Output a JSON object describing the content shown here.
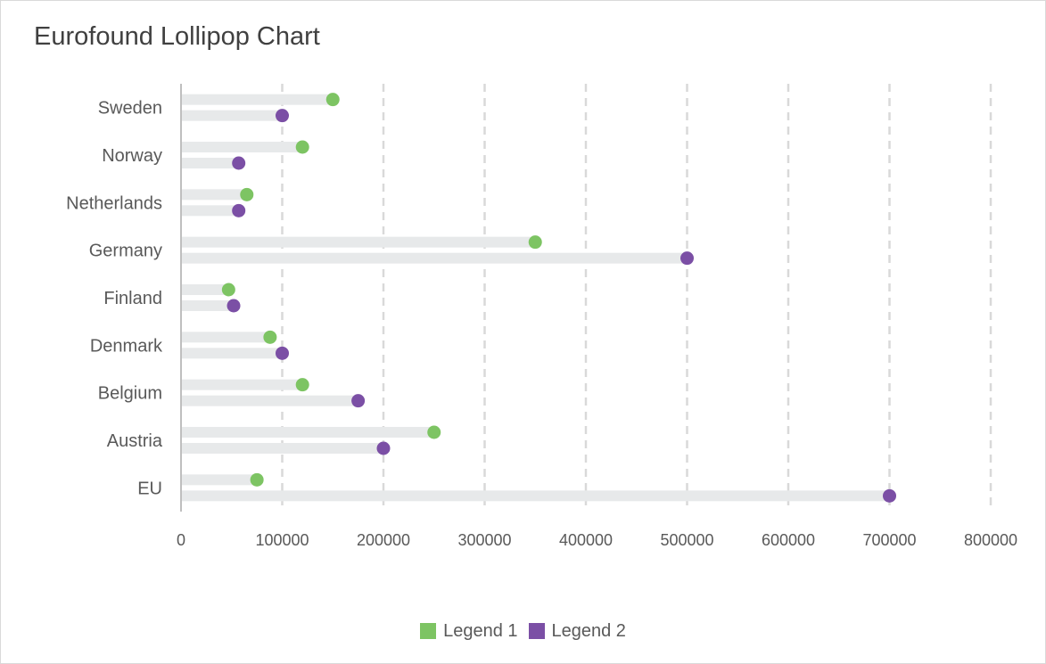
{
  "colors": {
    "series1": "#7dc463",
    "series2": "#7b4fa5",
    "track": "#e7e9ea",
    "grid": "#d9d9d9",
    "axis": "#bfbfbf"
  },
  "chart_data": {
    "type": "lollipop",
    "orientation": "horizontal",
    "title": "Eurofound Lollipop Chart",
    "categories": [
      "Sweden",
      "Norway",
      "Netherlands",
      "Germany",
      "Finland",
      "Denmark",
      "Belgium",
      "Austria",
      "EU"
    ],
    "series": [
      {
        "name": "Legend 1",
        "values": [
          150000,
          120000,
          65000,
          350000,
          47000,
          88000,
          120000,
          250000,
          75000
        ]
      },
      {
        "name": "Legend 2",
        "values": [
          100000,
          57000,
          57000,
          500000,
          52000,
          100000,
          175000,
          200000,
          700000
        ]
      }
    ],
    "xlim": [
      0,
      800000
    ],
    "xticks": [
      "0",
      "100000",
      "200000",
      "300000",
      "400000",
      "500000",
      "600000",
      "700000",
      "800000"
    ],
    "grid": "vertical-dashed",
    "legend_position": "bottom"
  }
}
